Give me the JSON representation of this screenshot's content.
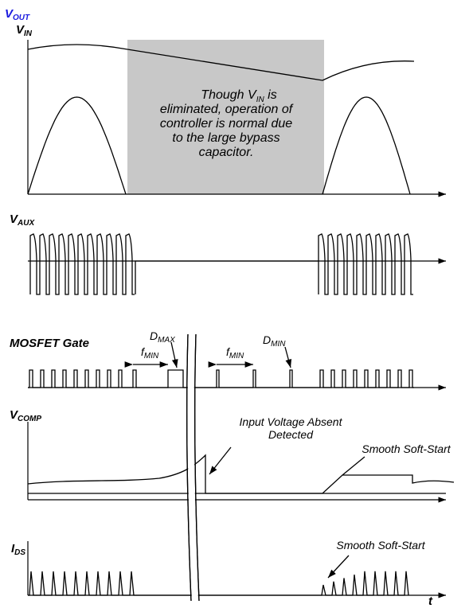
{
  "vout": {
    "main": "V",
    "sub": "OUT"
  },
  "vin": {
    "main": "V",
    "sub": "IN"
  },
  "note": {
    "first": {
      "before": "Though V",
      "sub": "IN",
      "after": " is"
    },
    "lines": [
      "eliminated, operation of",
      "controller is normal due",
      "to the large bypass",
      "capacitor."
    ]
  },
  "vaux": {
    "main": "V",
    "sub": "AUX"
  },
  "gate": "MOSFET Gate",
  "dmax": {
    "main": "D",
    "sub": "MAX"
  },
  "fmin1": {
    "main": "f",
    "sub": "MIN"
  },
  "fmin2": {
    "main": "f",
    "sub": "MIN"
  },
  "dmin": {
    "main": "D",
    "sub": "MIN"
  },
  "vcomp": {
    "main": "V",
    "sub": "COMP"
  },
  "absent": [
    "Input Voltage Absent",
    "Detected"
  ],
  "soft1": "Smooth Soft-Start",
  "ids": {
    "main": "I",
    "sub": "DS"
  },
  "soft2": "Smooth Soft-Start",
  "t": "t"
}
